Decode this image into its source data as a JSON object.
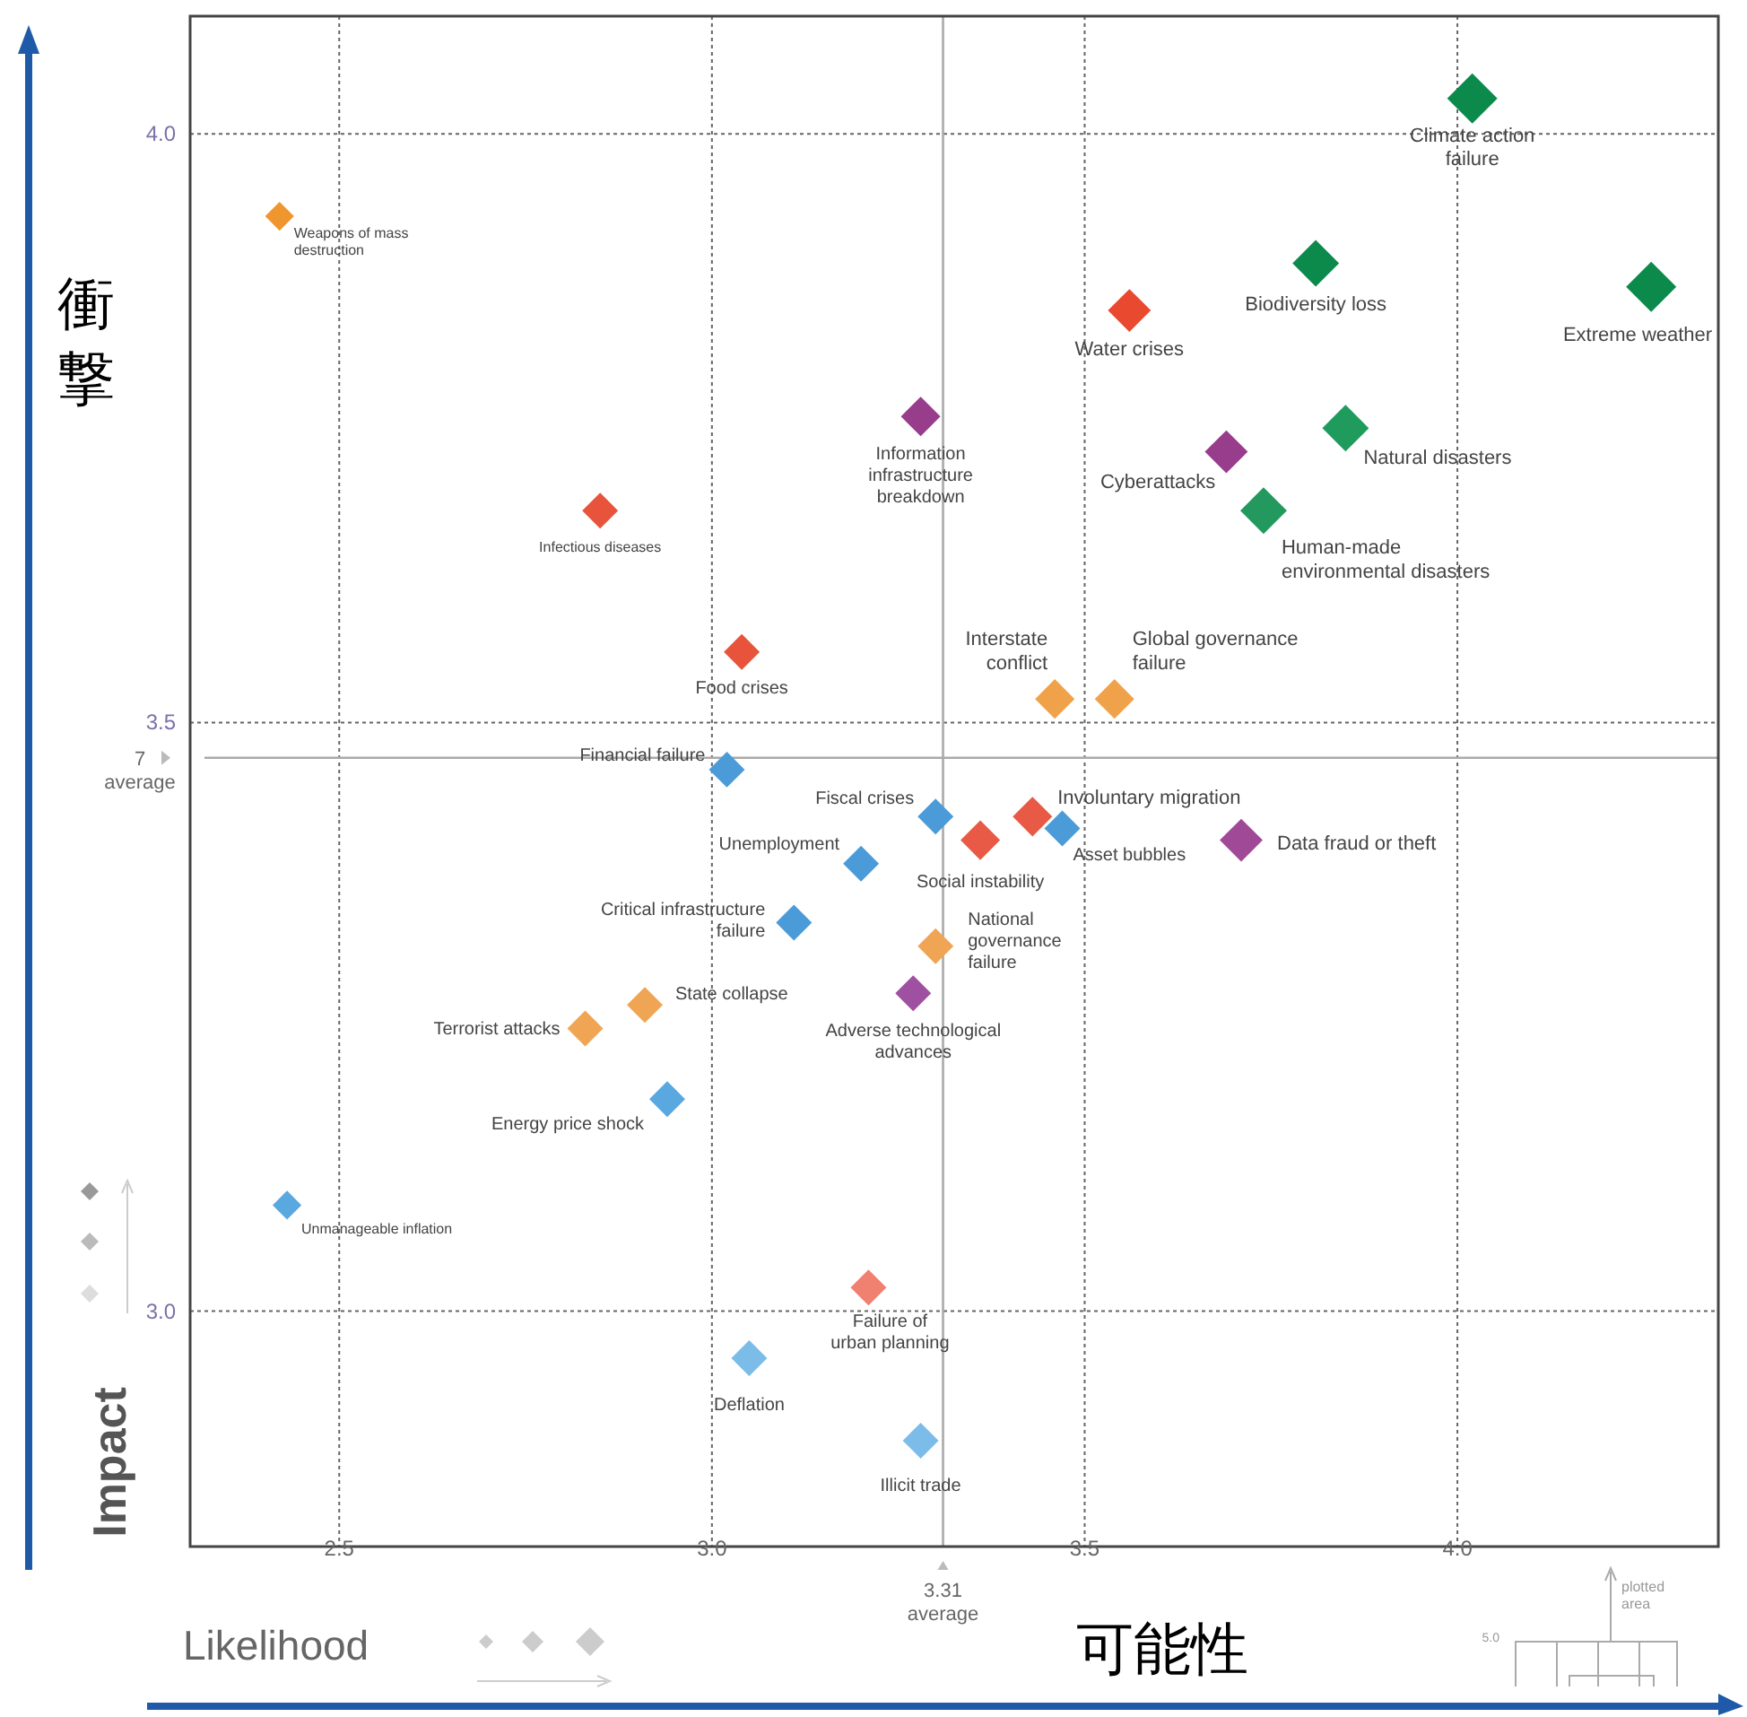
{
  "chart_data": {
    "type": "bubble",
    "xlabel": "可能性",
    "ylabel": "衝撃",
    "marker": "diamond",
    "grid": true,
    "xlim": [
      2.3,
      4.35
    ],
    "ylim": [
      2.8,
      4.1
    ],
    "xticks": [
      2.5,
      {
        "value": 3,
        "label": "3.0"
      },
      3.5,
      {
        "value": 4,
        "label": "4.0"
      }
    ],
    "yticks": [
      {
        "value": 3,
        "label": "3.0"
      },
      3.5,
      {
        "value": 4,
        "label": "4.0"
      }
    ],
    "ref_lines": [
      {
        "axis": "x",
        "value": 3.31,
        "label": "3.31\naverage",
        "color": "#aaaaaa"
      },
      {
        "axis": "y",
        "value": 3.47,
        "label": "7\naverage",
        "color": "#aaaaaa"
      }
    ],
    "series": [
      {
        "x": [
          2.42,
          4.02,
          3.81,
          4.26,
          3.56,
          3.28,
          3.69,
          3.85,
          3.74,
          2.85,
          3.04,
          3.46,
          3.54,
          3.02,
          3.3,
          3.43,
          3.36,
          3.47,
          3.71,
          3.2,
          3.11,
          3.3,
          3.27,
          2.91,
          2.83,
          2.94,
          2.43,
          3.21,
          3.05,
          3.28
        ],
        "values": [
          3.93,
          4.03,
          3.89,
          3.87,
          3.85,
          3.76,
          3.73,
          3.75,
          3.68,
          3.68,
          3.56,
          3.52,
          3.52,
          3.46,
          3.42,
          3.42,
          3.4,
          3.41,
          3.4,
          3.38,
          3.33,
          3.31,
          3.27,
          3.26,
          3.24,
          3.18,
          3.09,
          3.02,
          2.96,
          2.89
        ],
        "sizes": [
          0.33,
          1,
          0.86,
          1,
          0.73,
          0.62,
          0.73,
          0.86,
          0.86,
          0.51,
          0.51,
          0.62,
          0.62,
          0.51,
          0.51,
          0.62,
          0.62,
          0.51,
          0.73,
          0.51,
          0.51,
          0.51,
          0.51,
          0.51,
          0.51,
          0.51,
          0.33,
          0.51,
          0.51,
          0.51
        ],
        "colors": [
          "#f0962e",
          "#0b8a4c",
          "#0b8a4c",
          "#0b8a4c",
          "#e8492f",
          "#973d8b",
          "#973d8b",
          "#1f9b5e",
          "#23995f",
          "#e8533c",
          "#e8533c",
          "#f0a24a",
          "#f0a24a",
          "#4b9bd8",
          "#4b9bd8",
          "#e85a45",
          "#e85a45",
          "#4b9bd8",
          "#a04a97",
          "#4b9bd8",
          "#4b9bd8",
          "#f0a555",
          "#a050a0",
          "#f0a555",
          "#f0a555",
          "#5aa8e0",
          "#5aa8e0",
          "#f08070",
          "#7cbce8",
          "#7cbce8"
        ]
      }
    ],
    "annotations": [
      {
        "text": "Weapons of mass\ndestruction",
        "x": 2.42,
        "y": 3.93
      },
      {
        "text": "Climate action\nfailure",
        "x": 4.02,
        "y": 4.03
      },
      {
        "text": "Biodiversity loss",
        "x": 3.81,
        "y": 3.89
      },
      {
        "text": "Extreme weather",
        "x": 4.26,
        "y": 3.87
      },
      {
        "text": "Water crises",
        "x": 3.56,
        "y": 3.85
      },
      {
        "text": "Information\ninfrastructure\nbreakdown",
        "x": 3.28,
        "y": 3.76
      },
      {
        "text": "Cyberattacks",
        "x": 3.69,
        "y": 3.73
      },
      {
        "text": "Natural disasters",
        "x": 3.85,
        "y": 3.75
      },
      {
        "text": "Human-made\nenvironmental disasters",
        "x": 3.74,
        "y": 3.68
      },
      {
        "text": "Infectious diseases",
        "x": 2.85,
        "y": 3.68
      },
      {
        "text": "Food crises",
        "x": 3.04,
        "y": 3.56
      },
      {
        "text": "Interstate\nconflict",
        "x": 3.46,
        "y": 3.52
      },
      {
        "text": "Global governance\nfailure",
        "x": 3.54,
        "y": 3.52
      },
      {
        "text": "Financial failure",
        "x": 3.02,
        "y": 3.46
      },
      {
        "text": "Fiscal crises",
        "x": 3.3,
        "y": 3.42
      },
      {
        "text": "Involuntary migration",
        "x": 3.43,
        "y": 3.42
      },
      {
        "text": "Social instability",
        "x": 3.36,
        "y": 3.4
      },
      {
        "text": "Asset bubbles",
        "x": 3.47,
        "y": 3.41
      },
      {
        "text": "Data fraud or theft",
        "x": 3.71,
        "y": 3.4
      },
      {
        "text": "Unemployment",
        "x": 3.2,
        "y": 3.38
      },
      {
        "text": "Critical infrastructure\nfailure",
        "x": 3.11,
        "y": 3.33
      },
      {
        "text": "National\ngovernance\nfailure",
        "x": 3.3,
        "y": 3.31
      },
      {
        "text": "Adverse technological\nadvances",
        "x": 3.27,
        "y": 3.27
      },
      {
        "text": "State collapse",
        "x": 2.91,
        "y": 3.26
      },
      {
        "text": "Terrorist attacks",
        "x": 2.83,
        "y": 3.24
      },
      {
        "text": "Energy price shock",
        "x": 2.94,
        "y": 3.18
      },
      {
        "text": "Unmanageable inflation",
        "x": 2.43,
        "y": 3.09
      },
      {
        "text": "Failure of\nurban planning",
        "x": 3.21,
        "y": 3.02
      },
      {
        "text": "Deflation",
        "x": 3.05,
        "y": 2.96
      },
      {
        "text": "Illicit trade",
        "x": 3.28,
        "y": 2.89
      },
      "Impact",
      "Likelihood",
      "plotted\narea",
      "5.0"
    ]
  }
}
